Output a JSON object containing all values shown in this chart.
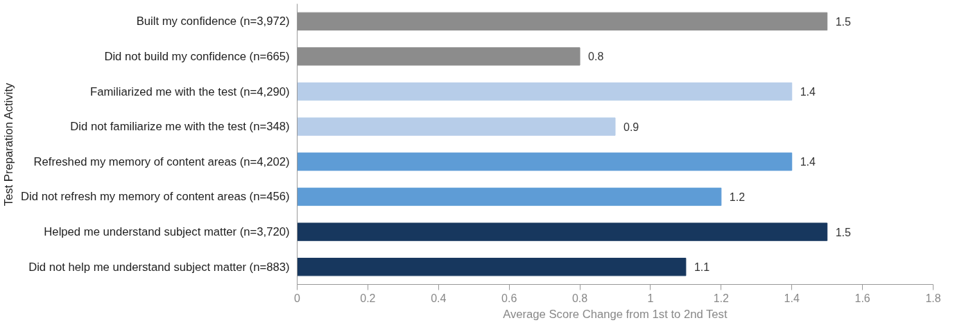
{
  "chart_data": {
    "type": "bar",
    "orientation": "horizontal",
    "categories": [
      "Built my confidence (n=3,972)",
      "Did not build my confidence (n=665)",
      "Familiarized me with the test (n=4,290)",
      "Did not familiarize me with the test (n=348)",
      "Refreshed my memory of content areas (n=4,202)",
      "Did not refresh my memory of content areas (n=456)",
      "Helped me understand subject matter (n=3,720)",
      "Did not help me understand subject matter (n=883)"
    ],
    "values": [
      1.5,
      0.8,
      1.4,
      0.9,
      1.4,
      1.2,
      1.5,
      1.1
    ],
    "colors": [
      "#8c8c8c",
      "#8c8c8c",
      "#b7cde9",
      "#b7cde9",
      "#5e9cd6",
      "#5e9cd6",
      "#17375e",
      "#17375e"
    ],
    "xlabel": "Average Score Change from 1st to 2nd Test",
    "ylabel": "Test Preparation Activity",
    "xlim": [
      0,
      1.8
    ],
    "xticks": [
      0,
      0.2,
      0.4,
      0.6,
      0.8,
      1,
      1.2,
      1.4,
      1.6,
      1.8
    ],
    "data_labels": true,
    "grid": false
  }
}
